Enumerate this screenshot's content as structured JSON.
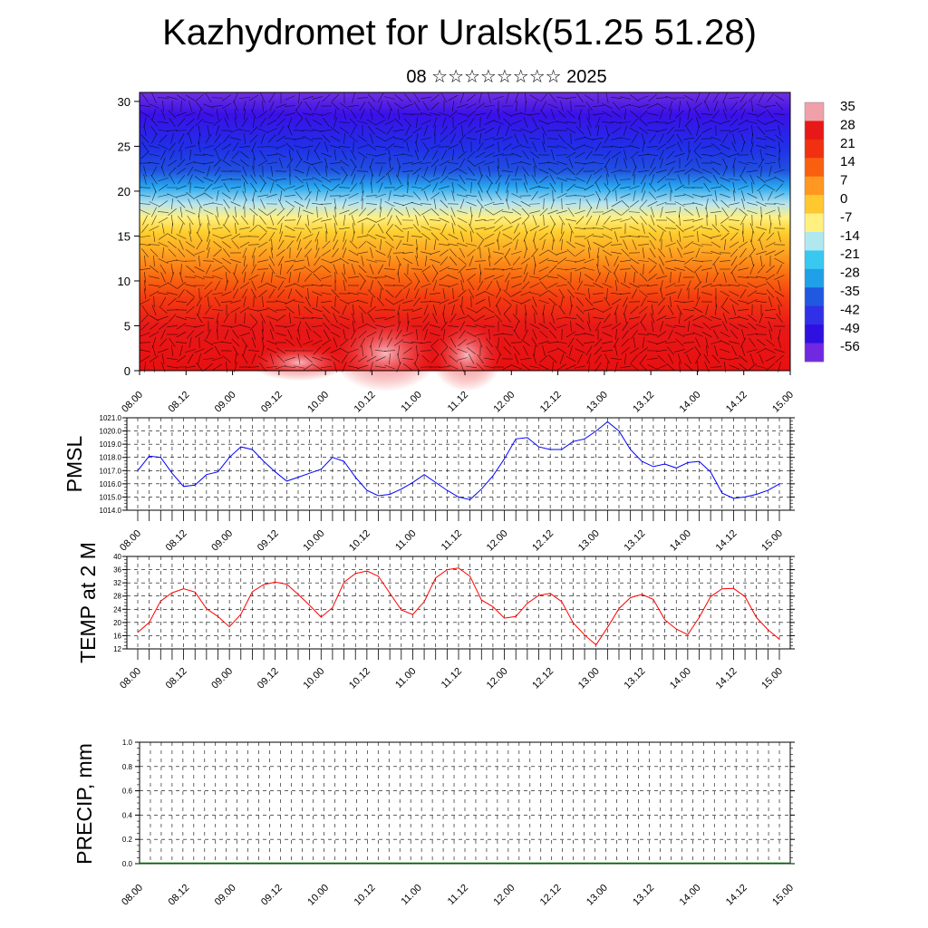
{
  "title": "Kazhydromet for Uralsk(51.25 51.28)",
  "subtitle": "08 ☆☆☆☆☆☆☆☆ 2025",
  "chart_data": [
    {
      "type": "heatmap",
      "name": "cross-section",
      "y_ticks": [
        "0",
        "5",
        "10",
        "15",
        "20",
        "25",
        "30"
      ],
      "ylim": [
        0,
        31
      ],
      "x_ticks": [
        "08.00",
        "08.12",
        "09.00",
        "09.12",
        "10.00",
        "10.12",
        "11.00",
        "11.12",
        "12.00",
        "12.12",
        "13.00",
        "13.12",
        "14.00",
        "14.12",
        "15.00"
      ],
      "colorbar_labels": [
        "35",
        "28",
        "21",
        "14",
        "7",
        "0",
        "-7",
        "-14",
        "-21",
        "-28",
        "-35",
        "-42",
        "-49",
        "-56"
      ],
      "colorbar_colors": [
        "#f0a0a8",
        "#e81818",
        "#f03010",
        "#f86010",
        "#fe9820",
        "#ffc830",
        "#fff080",
        "#b0e8f0",
        "#38c8f0",
        "#20a0e8",
        "#2058e0",
        "#3030e8",
        "#3010e0",
        "#7028e0"
      ]
    },
    {
      "type": "line",
      "ylabel": "PMSL",
      "ylim": [
        1014,
        1021
      ],
      "y_ticks": [
        "1014.0",
        "1015.0",
        "1016.0",
        "1017.0",
        "1018.0",
        "1019.0",
        "1020.0",
        "1021.0"
      ],
      "x_ticks": [
        "08.00",
        "08.12",
        "09.00",
        "09.12",
        "10.00",
        "10.12",
        "11.00",
        "11.12",
        "12.00",
        "12.12",
        "13.00",
        "13.12",
        "14.00",
        "14.12",
        "15.00"
      ],
      "color": "#0000ff",
      "values": [
        1017.0,
        1018.1,
        1018.0,
        1016.8,
        1015.8,
        1015.9,
        1016.7,
        1016.9,
        1018.0,
        1018.8,
        1018.6,
        1017.7,
        1016.9,
        1016.2,
        1016.5,
        1016.8,
        1017.1,
        1018.0,
        1017.7,
        1016.5,
        1015.5,
        1015.1,
        1015.2,
        1015.6,
        1016.1,
        1016.7,
        1016.1,
        1015.5,
        1015.0,
        1014.8,
        1015.6,
        1016.6,
        1017.9,
        1019.4,
        1019.5,
        1018.8,
        1018.6,
        1018.6,
        1019.2,
        1019.4,
        1020.0,
        1020.7,
        1020.0,
        1018.6,
        1017.7,
        1017.3,
        1017.5,
        1017.2,
        1017.6,
        1017.7,
        1016.9,
        1015.3,
        1014.9,
        1015.0,
        1015.2,
        1015.5,
        1016.0
      ]
    },
    {
      "type": "line",
      "ylabel": "TEMP at 2 M",
      "ylim": [
        12,
        40
      ],
      "y_ticks": [
        "12",
        "16",
        "20",
        "24",
        "28",
        "32",
        "36",
        "40"
      ],
      "x_ticks": [
        "08.00",
        "08.12",
        "09.00",
        "09.12",
        "10.00",
        "10.12",
        "11.00",
        "11.12",
        "12.00",
        "12.12",
        "13.00",
        "13.12",
        "14.00",
        "14.12",
        "15.00"
      ],
      "color": "#ff0000",
      "values": [
        17.0,
        20.0,
        26.5,
        29.0,
        30.2,
        29.2,
        24.2,
        21.8,
        18.7,
        22.5,
        29.3,
        31.5,
        32.2,
        31.6,
        28.5,
        25.2,
        21.6,
        24.5,
        32.2,
        34.8,
        35.6,
        34.0,
        28.9,
        23.8,
        22.4,
        26.3,
        33.5,
        36.0,
        36.5,
        34.0,
        26.8,
        24.8,
        21.3,
        21.8,
        25.8,
        28.2,
        28.8,
        26.3,
        19.9,
        16.2,
        13.2,
        18.5,
        24.2,
        27.5,
        28.5,
        27.0,
        20.8,
        18.0,
        16.3,
        21.5,
        27.8,
        30.2,
        30.3,
        27.8,
        21.5,
        17.8,
        14.9
      ]
    },
    {
      "type": "line",
      "ylabel": "PRECIP, mm",
      "ylim": [
        0,
        1
      ],
      "y_ticks": [
        "0.0",
        "0.2",
        "0.4",
        "0.6",
        "0.8",
        "1.0"
      ],
      "x_ticks": [
        "08.00",
        "08.12",
        "09.00",
        "09.12",
        "10.00",
        "10.12",
        "11.00",
        "11.12",
        "12.00",
        "12.12",
        "13.00",
        "13.12",
        "14.00",
        "14.12",
        "15.00"
      ],
      "color": "#006400",
      "values": [
        0,
        0,
        0,
        0,
        0,
        0,
        0,
        0,
        0,
        0,
        0,
        0,
        0,
        0,
        0,
        0,
        0,
        0,
        0,
        0,
        0,
        0,
        0,
        0,
        0,
        0,
        0,
        0,
        0,
        0,
        0,
        0,
        0,
        0,
        0,
        0,
        0,
        0,
        0,
        0,
        0,
        0,
        0,
        0,
        0,
        0,
        0,
        0,
        0,
        0,
        0,
        0,
        0,
        0,
        0,
        0,
        0,
        0,
        0,
        0,
        0
      ]
    }
  ]
}
